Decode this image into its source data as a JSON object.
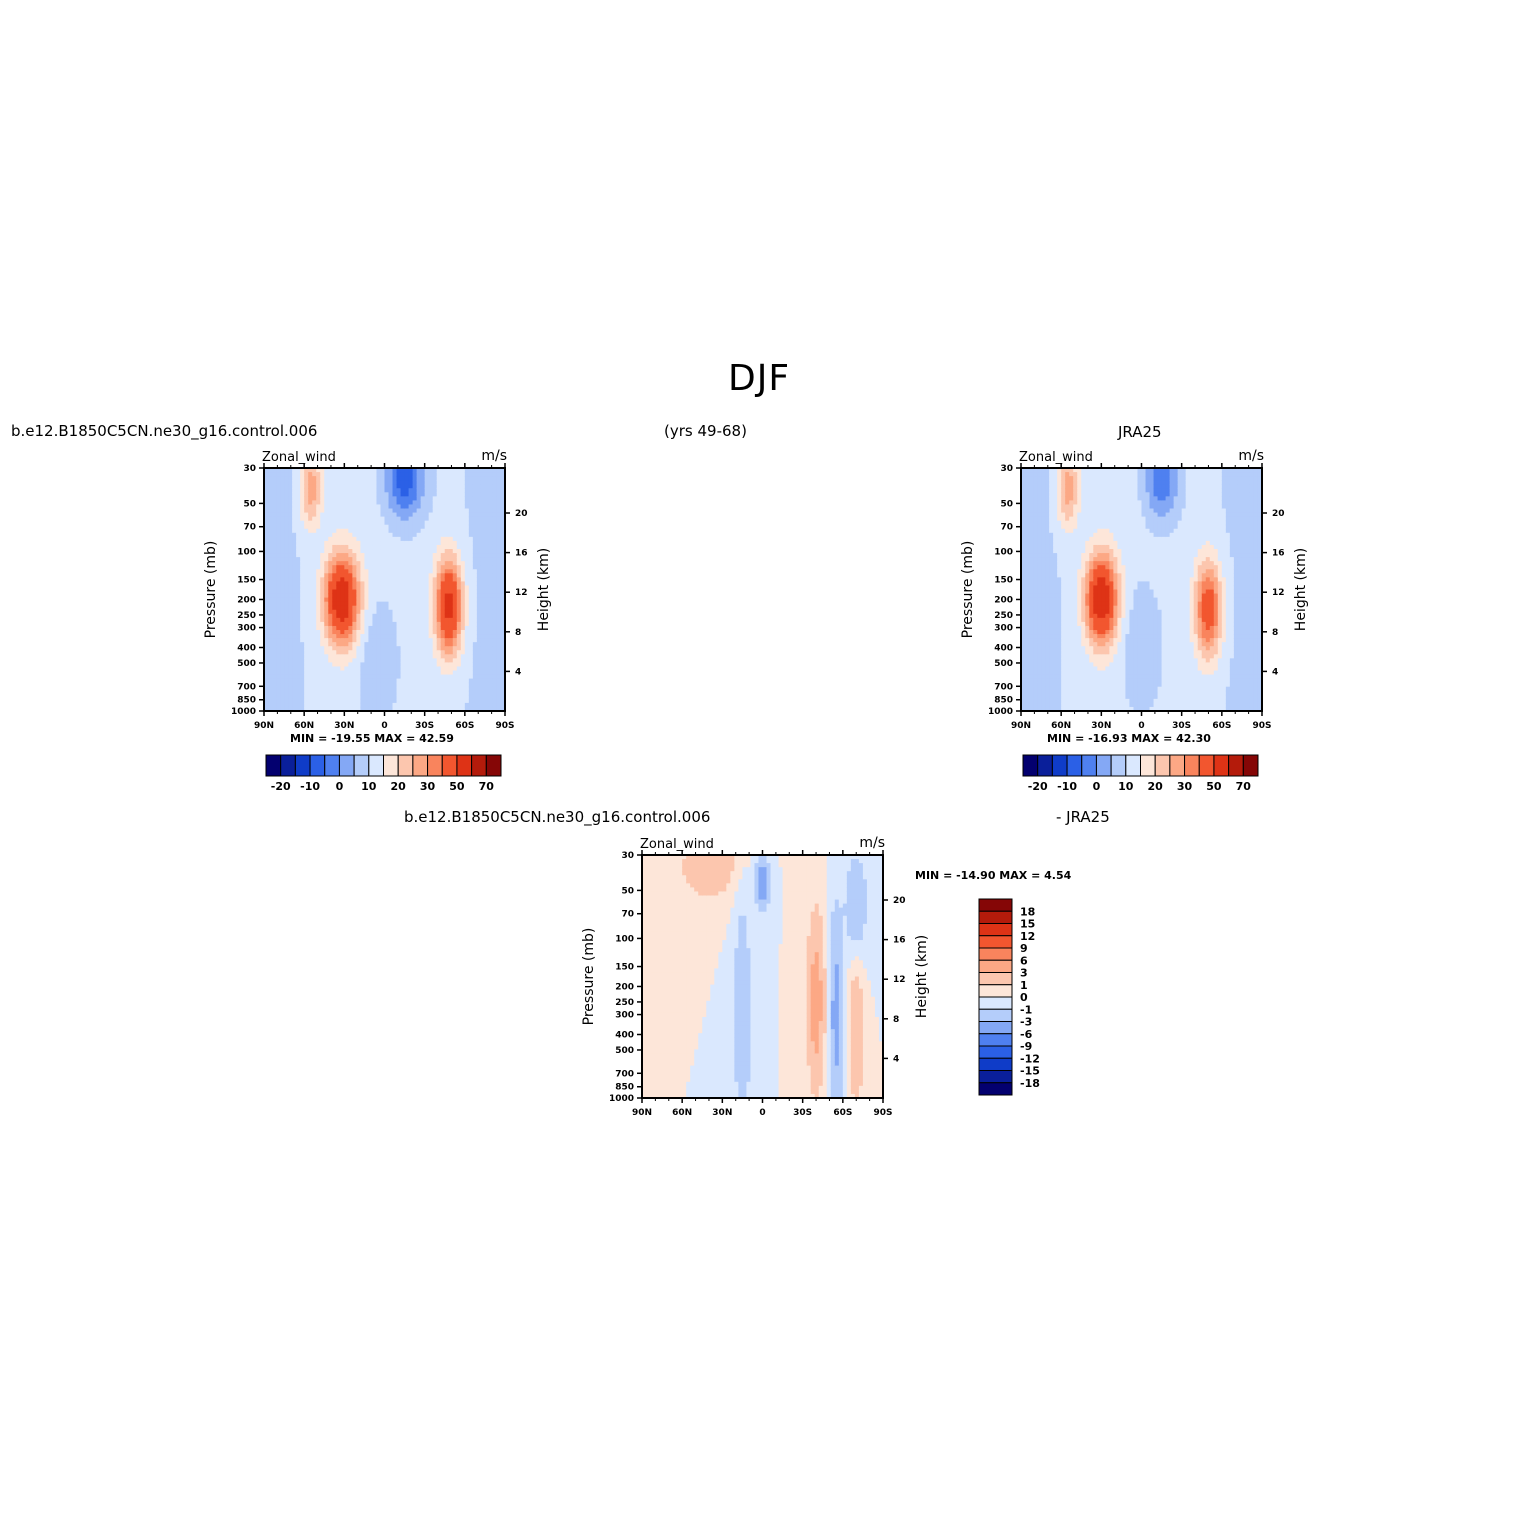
{
  "figure": {
    "title": "DJF",
    "case_left": "b.e12.B1850C5CN.ne30_g16.control.006",
    "years": "(yrs 49-68)",
    "case_right": "JRA25",
    "diff_left": "b.e12.B1850C5CN.ne30_g16.control.006",
    "diff_right": "- JRA25"
  },
  "chart_data": [
    {
      "type": "heatmap",
      "id": "model",
      "variable_label": "Zonal_wind",
      "units_label": "m/s",
      "ylabel": "Pressure (mb)",
      "y2label": "Height (km)",
      "xticks": [
        "90N",
        "60N",
        "30N",
        "0",
        "30S",
        "60S",
        "90S"
      ],
      "xlim": [
        90,
        -90
      ],
      "yticks": [
        "30",
        "50",
        "70",
        "100",
        "150",
        "200",
        "250",
        "300",
        "400",
        "500",
        "700",
        "850",
        "1000"
      ],
      "yscale": "log",
      "ylim": [
        1000,
        30
      ],
      "y2ticks": [
        "4",
        "8",
        "12",
        "16",
        "20"
      ],
      "minmax": "MIN = -19.55   MAX =   42.59",
      "levels": [
        -25,
        -20,
        -15,
        -10,
        -5,
        0,
        5,
        10,
        15,
        20,
        25,
        30,
        40,
        50,
        60,
        70
      ],
      "colorbar_labels": [
        "-20",
        "-10",
        "0",
        "10",
        "20",
        "30",
        "50",
        "70"
      ],
      "features": [
        {
          "lat": 32,
          "p": 200,
          "u": 42,
          "wlat": 13,
          "wlogp": 0.28
        },
        {
          "lat": -48,
          "p": 220,
          "u": 38,
          "wlat": 10,
          "wlogp": 0.3
        },
        {
          "lat": 55,
          "p": 40,
          "u": 18,
          "wlat": 8,
          "wlogp": 0.25
        },
        {
          "lat": -15,
          "p": 35,
          "u": -20,
          "wlat": 14,
          "wlogp": 0.25
        },
        {
          "lat": 5,
          "p": 500,
          "u": -6,
          "wlat": 15,
          "wlogp": 0.4
        }
      ]
    },
    {
      "type": "heatmap",
      "id": "obs",
      "variable_label": "Zonal_wind",
      "units_label": "m/s",
      "ylabel": "Pressure (mb)",
      "y2label": "Height (km)",
      "xticks": [
        "90N",
        "60N",
        "30N",
        "0",
        "30S",
        "60S",
        "90S"
      ],
      "xlim": [
        90,
        -90
      ],
      "yticks": [
        "30",
        "50",
        "70",
        "100",
        "150",
        "200",
        "250",
        "300",
        "400",
        "500",
        "700",
        "850",
        "1000"
      ],
      "yscale": "log",
      "ylim": [
        1000,
        30
      ],
      "y2ticks": [
        "4",
        "8",
        "12",
        "16",
        "20"
      ],
      "minmax": "MIN = -16.93   MAX =   42.30",
      "levels": [
        -25,
        -20,
        -15,
        -10,
        -5,
        0,
        5,
        10,
        15,
        20,
        25,
        30,
        40,
        50,
        60,
        70
      ],
      "colorbar_labels": [
        "-20",
        "-10",
        "0",
        "10",
        "20",
        "30",
        "50",
        "70"
      ],
      "features": [
        {
          "lat": 30,
          "p": 200,
          "u": 42,
          "wlat": 12,
          "wlogp": 0.28
        },
        {
          "lat": -50,
          "p": 230,
          "u": 30,
          "wlat": 10,
          "wlogp": 0.3
        },
        {
          "lat": 55,
          "p": 40,
          "u": 18,
          "wlat": 8,
          "wlogp": 0.25
        },
        {
          "lat": -15,
          "p": 35,
          "u": -17,
          "wlat": 12,
          "wlogp": 0.25
        },
        {
          "lat": 0,
          "p": 400,
          "u": -6,
          "wlat": 15,
          "wlogp": 0.4
        }
      ]
    },
    {
      "type": "heatmap",
      "id": "diff",
      "variable_label": "Zonal_wind",
      "units_label": "m/s",
      "ylabel": "Pressure (mb)",
      "y2label": "Height (km)",
      "xticks": [
        "90N",
        "60N",
        "30N",
        "0",
        "30S",
        "60S",
        "90S"
      ],
      "xlim": [
        90,
        -90
      ],
      "yticks": [
        "30",
        "50",
        "70",
        "100",
        "150",
        "200",
        "250",
        "300",
        "400",
        "500",
        "700",
        "850",
        "1000"
      ],
      "yscale": "log",
      "ylim": [
        1000,
        30
      ],
      "y2ticks": [
        "4",
        "8",
        "12",
        "16",
        "20"
      ],
      "minmax": "MIN = -14.90   MAX =    4.54",
      "levels": [
        -18,
        -15,
        -12,
        -9,
        -6,
        -3,
        -1,
        0,
        1,
        3,
        6,
        9,
        12,
        15,
        18
      ],
      "colorbar_labels": [
        "18",
        "15",
        "12",
        "9",
        "6",
        "3",
        "1",
        "0",
        "-1",
        "-3",
        "-6",
        "-9",
        "-12",
        "-15",
        "-18"
      ],
      "features": [
        {
          "lat": 40,
          "p": 35,
          "u": 2.5,
          "wlat": 20,
          "wlogp": 0.2
        },
        {
          "lat": 0,
          "p": 45,
          "u": -5,
          "wlat": 5,
          "wlogp": 0.15
        },
        {
          "lat": -40,
          "p": 250,
          "u": 4.5,
          "wlat": 6,
          "wlogp": 0.5
        },
        {
          "lat": -55,
          "p": 300,
          "u": -4,
          "wlat": 5,
          "wlogp": 0.6
        },
        {
          "lat": -70,
          "p": 400,
          "u": 3,
          "wlat": 5,
          "wlogp": 0.4
        },
        {
          "lat": -70,
          "p": 60,
          "u": -2.5,
          "wlat": 8,
          "wlogp": 0.3
        },
        {
          "lat": 15,
          "p": 300,
          "u": -2.5,
          "wlat": 6,
          "wlogp": 0.7
        }
      ]
    }
  ],
  "colors": {
    "model_obs": [
      "#03006f",
      "#0a1f9a",
      "#0f3cc8",
      "#2b60e6",
      "#4f80f0",
      "#84a8f5",
      "#b4cdfa",
      "#dae8fe",
      "#fde6d9",
      "#fcc6ae",
      "#fca885",
      "#f9845d",
      "#f2562f",
      "#de3316",
      "#b41b0b",
      "#850606"
    ],
    "diff": [
      "#03006f",
      "#0a1f9a",
      "#0f3cc8",
      "#2b60e6",
      "#4f80f0",
      "#84a8f5",
      "#b4cdfa",
      "#dae8fe",
      "#fde6d9",
      "#fcc6ae",
      "#fca885",
      "#f9845d",
      "#f2562f",
      "#de3316",
      "#b41b0b",
      "#850606"
    ]
  }
}
